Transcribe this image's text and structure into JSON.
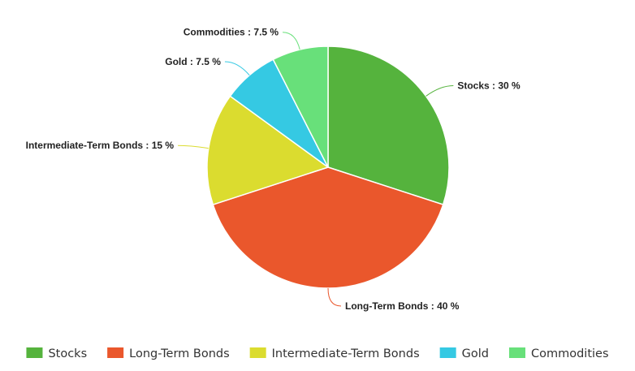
{
  "chart_data": {
    "type": "pie",
    "title": "",
    "slices": [
      {
        "name": "Stocks",
        "value": 30,
        "label": "Stocks : 30 %",
        "color": "#55b33d"
      },
      {
        "name": "Long-Term Bonds",
        "value": 40,
        "label": "Long-Term Bonds : 40 %",
        "color": "#ea572c"
      },
      {
        "name": "Intermediate-Term Bonds",
        "value": 15,
        "label": "Intermediate-Term Bonds : 15 %",
        "color": "#dbdc2f"
      },
      {
        "name": "Gold",
        "value": 7.5,
        "label": "Gold : 7.5 %",
        "color": "#35c9e3"
      },
      {
        "name": "Commodities",
        "value": 7.5,
        "label": "Commodities : 7.5 %",
        "color": "#68e07a"
      }
    ],
    "start_angle": "12 o'clock",
    "direction": "clockwise",
    "legend_position": "bottom"
  }
}
